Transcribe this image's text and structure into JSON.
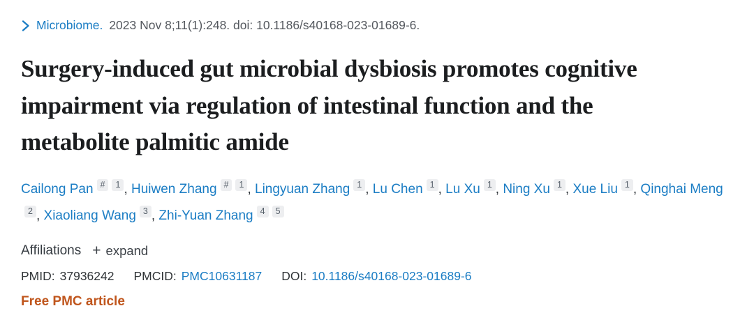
{
  "citation": {
    "journal": "Microbiome.",
    "details": "2023 Nov 8;11(1):248. doi: 10.1186/s40168-023-01689-6."
  },
  "title": "Surgery-induced gut microbial dysbiosis promotes cognitive impairment via regulation of intestinal function and the metabolite palmitic amide",
  "authors": {
    "separator": ", ",
    "list": [
      {
        "name": "Cailong Pan",
        "sups": [
          "#",
          "1"
        ]
      },
      {
        "name": "Huiwen Zhang",
        "sups": [
          "#",
          "1"
        ]
      },
      {
        "name": "Lingyuan Zhang",
        "sups": [
          "1"
        ]
      },
      {
        "name": "Lu Chen",
        "sups": [
          "1"
        ]
      },
      {
        "name": "Lu Xu",
        "sups": [
          "1"
        ]
      },
      {
        "name": "Ning Xu",
        "sups": [
          "1"
        ]
      },
      {
        "name": "Xue Liu",
        "sups": [
          "1"
        ]
      },
      {
        "name": "Qinghai Meng",
        "sups": [
          "2"
        ]
      },
      {
        "name": "Xiaoliang Wang",
        "sups": [
          "3"
        ]
      },
      {
        "name": "Zhi-Yuan Zhang",
        "sups": [
          "4",
          "5"
        ]
      }
    ]
  },
  "affiliations": {
    "label": "Affiliations",
    "plus_icon": "+",
    "expand_label": "expand"
  },
  "identifiers": {
    "pmid_label": "PMID:",
    "pmid_value": "37936242",
    "pmcid_label": "PMCID:",
    "pmcid_value": "PMC10631187",
    "doi_label": "DOI:",
    "doi_value": "10.1186/s40168-023-01689-6"
  },
  "free_pmc_label": "Free PMC article",
  "icons": {
    "chevron": "chevron-right-icon",
    "plus": "plus-icon"
  },
  "colors": {
    "link_blue": "#1b7dc4",
    "citation_gray": "#55595f",
    "text_dark": "#212529",
    "free_pmc_orange": "#c0561d",
    "badge_bg": "#edeef0",
    "badge_text": "#57606a"
  }
}
